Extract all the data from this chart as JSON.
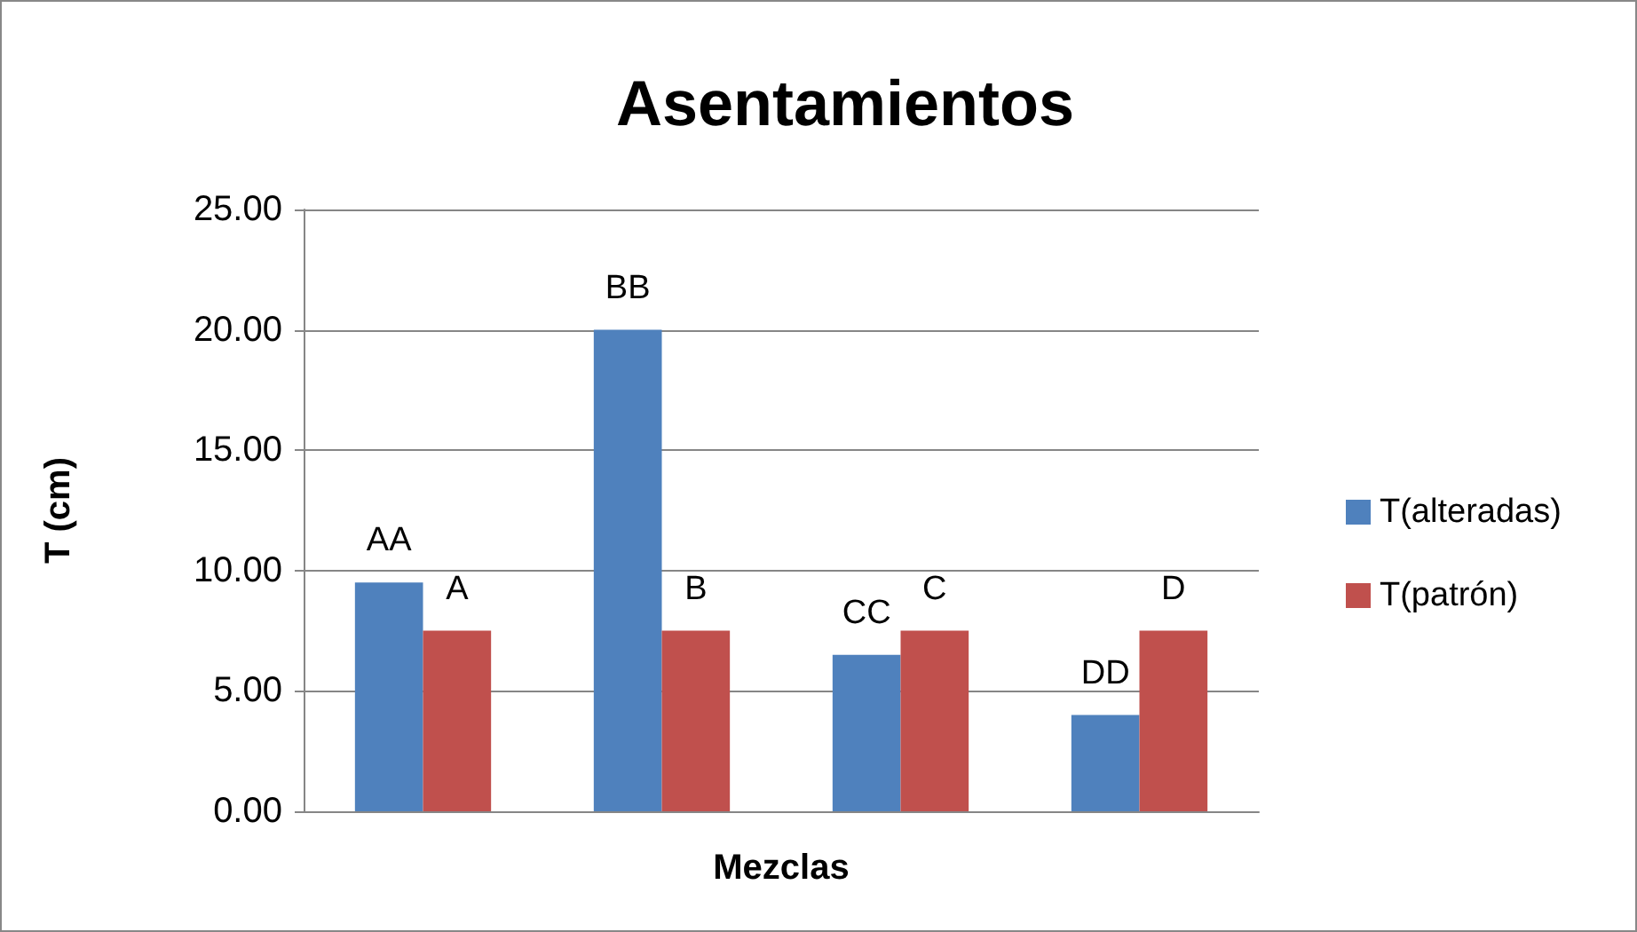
{
  "chart_data": {
    "type": "bar",
    "title": "Asentamientos",
    "xlabel": "Mezclas",
    "ylabel": "T (cm)",
    "categories": [
      null,
      null,
      null,
      null
    ],
    "series": [
      {
        "name": "T(alteradas)",
        "color": "#4f81bd",
        "values": [
          9.5,
          20,
          6.5,
          4
        ],
        "value_labels": [
          "AA",
          "BB",
          "CC",
          "DD"
        ]
      },
      {
        "name": "T(patrón)",
        "color": "#c0504d",
        "values": [
          7.5,
          7.5,
          7.5,
          7.5
        ],
        "value_labels": [
          "A",
          "B",
          "C",
          "D"
        ]
      }
    ],
    "ylim": [
      0,
      25
    ],
    "yticks": [
      {
        "value": 0,
        "label": "0.00"
      },
      {
        "value": 5,
        "label": "5.00"
      },
      {
        "value": 10,
        "label": "10.00"
      },
      {
        "value": 15,
        "label": "15.00"
      },
      {
        "value": 20,
        "label": "20.00"
      },
      {
        "value": 25,
        "label": "25.00"
      }
    ],
    "grid": "y",
    "legend": "right"
  }
}
